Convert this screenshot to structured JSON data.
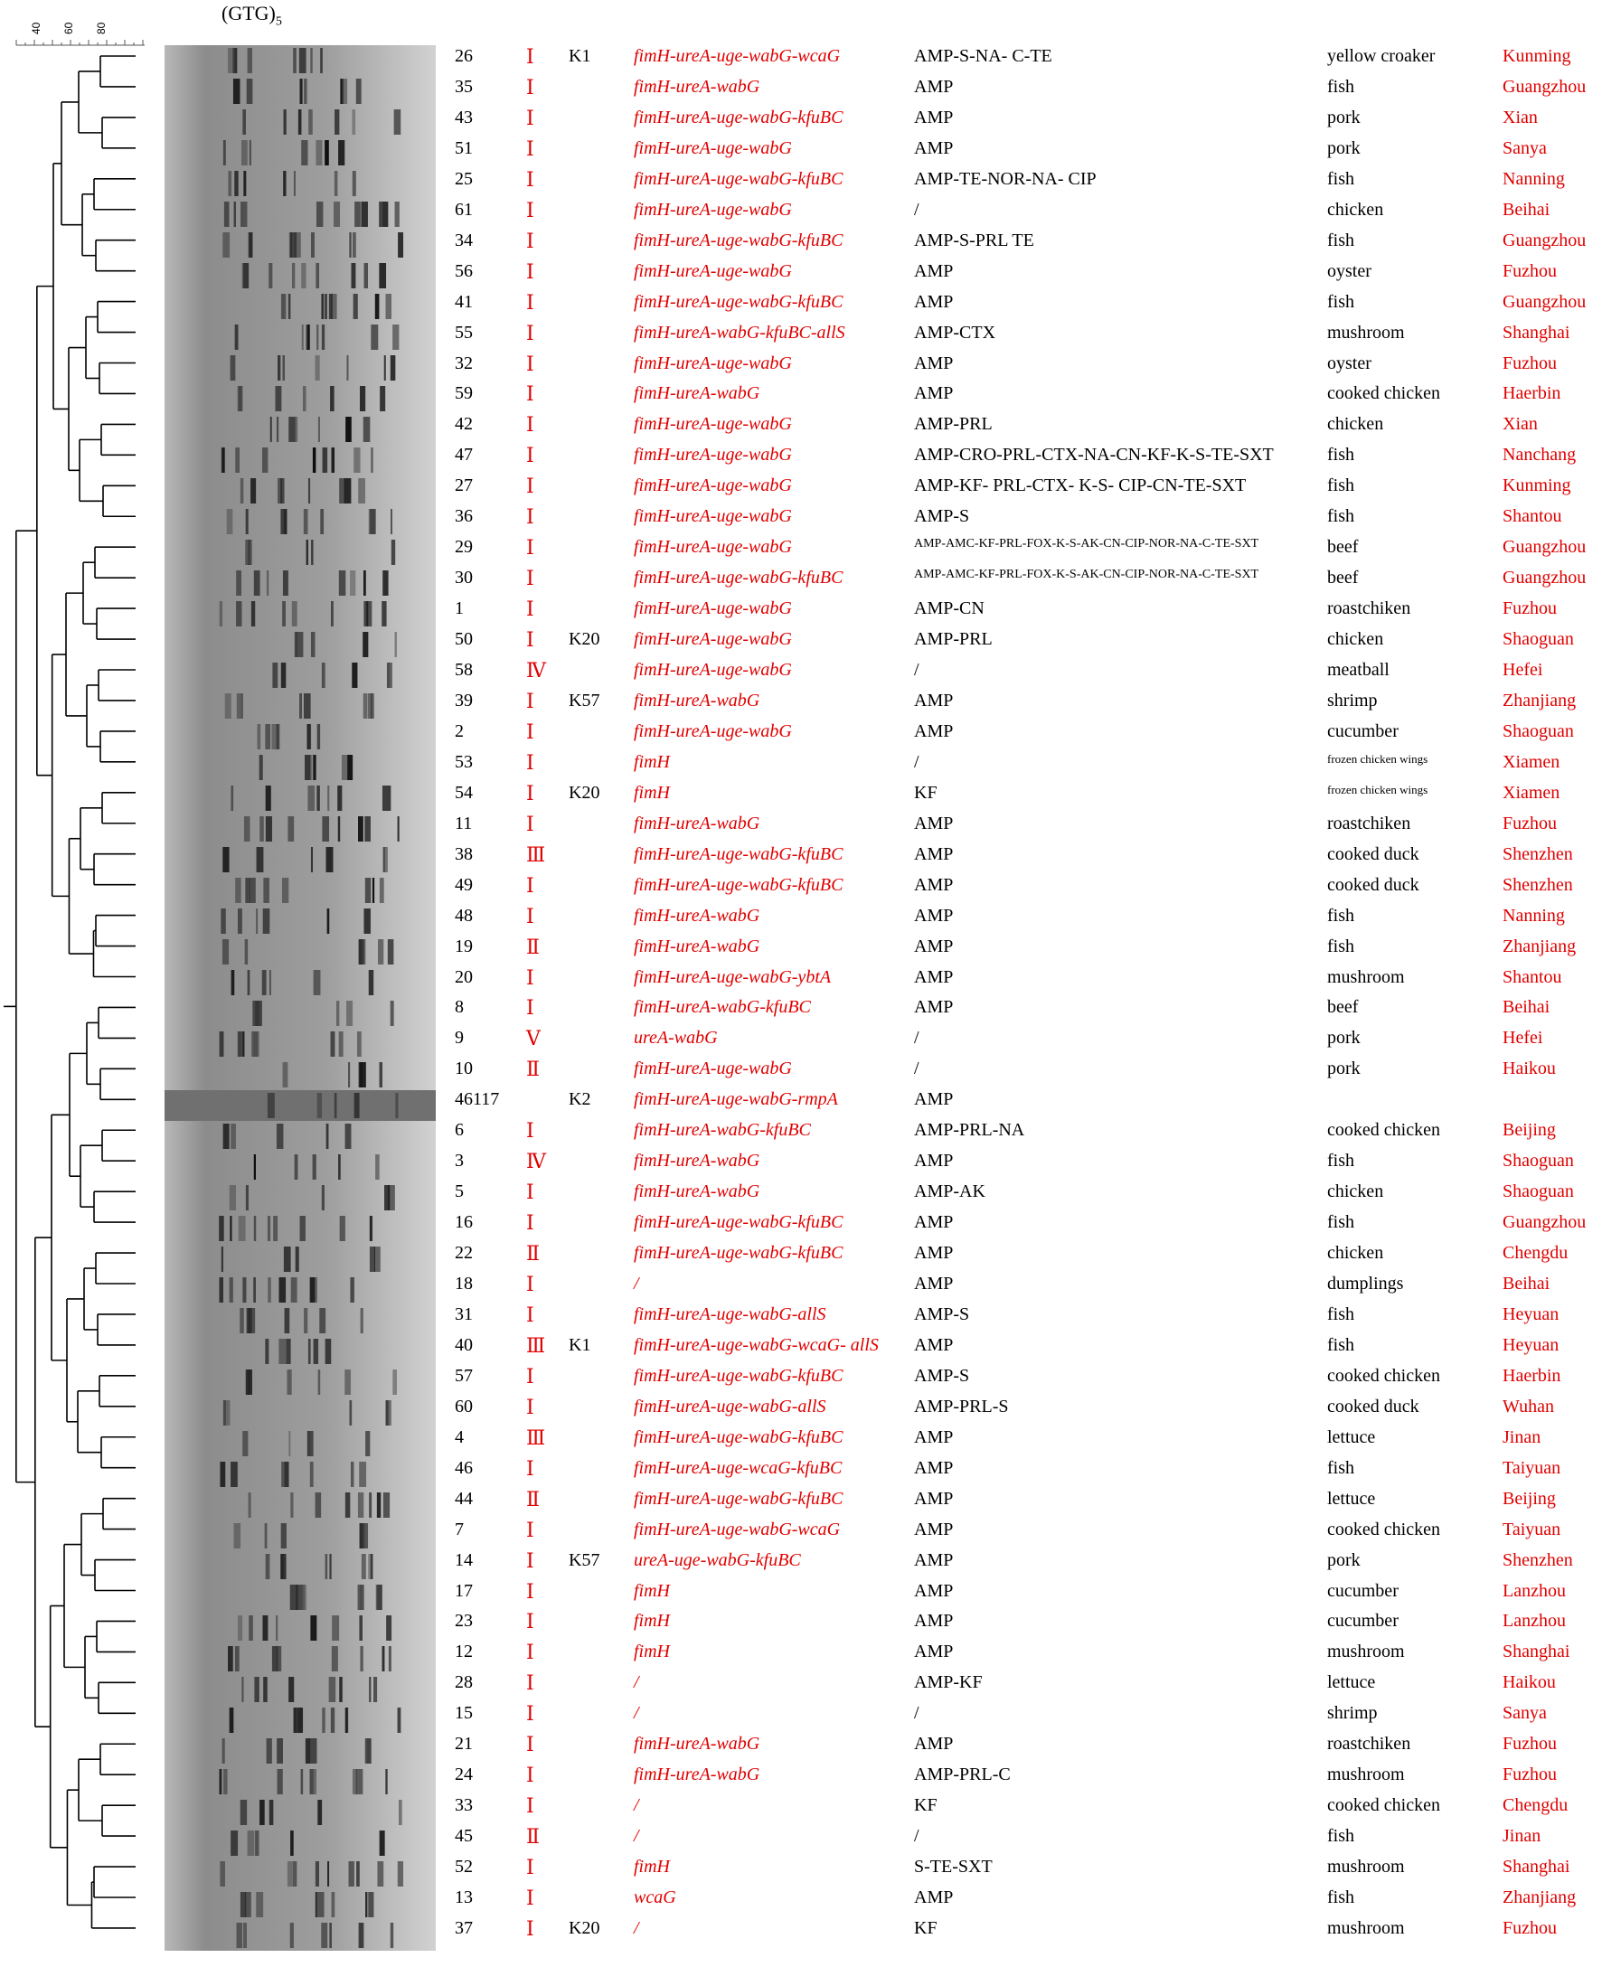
{
  "figure": {
    "gel_title_main": "(GTG)",
    "gel_title_sub": "5",
    "scale_labels": [
      "40",
      "60",
      "80"
    ]
  },
  "rows": [
    {
      "id": "26",
      "cluster": "Ⅰ",
      "ktype": "K1",
      "virulence": "fimH-ureA-uge-wabG-wcaG",
      "resistance": "AMP-S-NA- C-TE",
      "source": "yellow croaker",
      "city": "Kunming"
    },
    {
      "id": "35",
      "cluster": "Ⅰ",
      "ktype": "",
      "virulence": "fimH-ureA-wabG",
      "resistance": "AMP",
      "source": "fish",
      "city": "Guangzhou"
    },
    {
      "id": "43",
      "cluster": "Ⅰ",
      "ktype": "",
      "virulence": "fimH-ureA-uge-wabG-kfuBC",
      "resistance": "AMP",
      "source": "pork",
      "city": "Xian"
    },
    {
      "id": "51",
      "cluster": "Ⅰ",
      "ktype": "",
      "virulence": "fimH-ureA-uge-wabG",
      "resistance": "AMP",
      "source": "pork",
      "city": "Sanya"
    },
    {
      "id": "25",
      "cluster": "Ⅰ",
      "ktype": "",
      "virulence": "fimH-ureA-uge-wabG-kfuBC",
      "resistance": "AMP-TE-NOR-NA- CIP",
      "source": "fish",
      "city": "Nanning"
    },
    {
      "id": "61",
      "cluster": "Ⅰ",
      "ktype": "",
      "virulence": "fimH-ureA-uge-wabG",
      "resistance": "/",
      "source": "chicken",
      "city": "Beihai"
    },
    {
      "id": "34",
      "cluster": "Ⅰ",
      "ktype": "",
      "virulence": "fimH-ureA-uge-wabG-kfuBC",
      "resistance": "AMP-S-PRL TE",
      "source": "fish",
      "city": "Guangzhou"
    },
    {
      "id": "56",
      "cluster": "Ⅰ",
      "ktype": "",
      "virulence": "fimH-ureA-uge-wabG",
      "resistance": "AMP",
      "source": "oyster",
      "city": "Fuzhou"
    },
    {
      "id": "41",
      "cluster": "Ⅰ",
      "ktype": "",
      "virulence": "fimH-ureA-uge-wabG-kfuBC",
      "resistance": "AMP",
      "source": "fish",
      "city": "Guangzhou"
    },
    {
      "id": "55",
      "cluster": "Ⅰ",
      "ktype": "",
      "virulence": "fimH-ureA-wabG-kfuBC-allS",
      "resistance": "AMP-CTX",
      "source": "mushroom",
      "city": "Shanghai"
    },
    {
      "id": "32",
      "cluster": "Ⅰ",
      "ktype": "",
      "virulence": "fimH-ureA-uge-wabG",
      "resistance": "AMP",
      "source": "oyster",
      "city": "Fuzhou"
    },
    {
      "id": "59",
      "cluster": "Ⅰ",
      "ktype": "",
      "virulence": "fimH-ureA-wabG",
      "resistance": "AMP",
      "source": "cooked chicken",
      "city": "Haerbin"
    },
    {
      "id": "42",
      "cluster": "Ⅰ",
      "ktype": "",
      "virulence": "fimH-ureA-uge-wabG",
      "resistance": "AMP-PRL",
      "source": "chicken",
      "city": "Xian"
    },
    {
      "id": "47",
      "cluster": "Ⅰ",
      "ktype": "",
      "virulence": "fimH-ureA-uge-wabG",
      "resistance": "AMP-CRO-PRL-CTX-NA-CN-KF-K-S-TE-SXT",
      "source": "fish",
      "city": "Nanchang"
    },
    {
      "id": "27",
      "cluster": "Ⅰ",
      "ktype": "",
      "virulence": "fimH-ureA-uge-wabG",
      "resistance": "AMP-KF- PRL-CTX- K-S- CIP-CN-TE-SXT",
      "source": "fish",
      "city": "Kunming"
    },
    {
      "id": "36",
      "cluster": "Ⅰ",
      "ktype": "",
      "virulence": "fimH-ureA-uge-wabG",
      "resistance": "AMP-S",
      "source": "fish",
      "city": "Shantou"
    },
    {
      "id": "29",
      "cluster": "Ⅰ",
      "ktype": "",
      "virulence": "fimH-ureA-uge-wabG",
      "resistance": "AMP-AMC-KF-PRL-FOX-K-S-AK-CN-CIP-NOR-NA-C-TE-SXT",
      "source": "beef",
      "city": "Guangzhou"
    },
    {
      "id": "30",
      "cluster": "Ⅰ",
      "ktype": "",
      "virulence": "fimH-ureA-uge-wabG-kfuBC",
      "resistance": "AMP-AMC-KF-PRL-FOX-K-S-AK-CN-CIP-NOR-NA-C-TE-SXT",
      "source": "beef",
      "city": "Guangzhou"
    },
    {
      "id": "1",
      "cluster": "Ⅰ",
      "ktype": "",
      "virulence": "fimH-ureA-uge-wabG",
      "resistance": "AMP-CN",
      "source": "roastchiken",
      "city": "Fuzhou"
    },
    {
      "id": "50",
      "cluster": "Ⅰ",
      "ktype": "K20",
      "virulence": "fimH-ureA-uge-wabG",
      "resistance": "AMP-PRL",
      "source": "chicken",
      "city": "Shaoguan"
    },
    {
      "id": "58",
      "cluster": "Ⅳ",
      "ktype": "",
      "virulence": "fimH-ureA-uge-wabG",
      "resistance": "/",
      "source": "meatball",
      "city": "Hefei"
    },
    {
      "id": "39",
      "cluster": "Ⅰ",
      "ktype": "K57",
      "virulence": "fimH-ureA-wabG",
      "resistance": "AMP",
      "source": "shrimp",
      "city": "Zhanjiang"
    },
    {
      "id": "2",
      "cluster": "Ⅰ",
      "ktype": "",
      "virulence": "fimH-ureA-uge-wabG",
      "resistance": "AMP",
      "source": "cucumber",
      "city": "Shaoguan"
    },
    {
      "id": "53",
      "cluster": "Ⅰ",
      "ktype": "",
      "virulence": "fimH",
      "resistance": "/",
      "source": "frozen chicken wings",
      "city": "Xiamen"
    },
    {
      "id": "54",
      "cluster": "Ⅰ",
      "ktype": "K20",
      "virulence": "fimH",
      "resistance": "KF",
      "source": "frozen chicken wings",
      "city": "Xiamen"
    },
    {
      "id": "11",
      "cluster": "Ⅰ",
      "ktype": "",
      "virulence": "fimH-ureA-wabG",
      "resistance": "AMP",
      "source": "roastchiken",
      "city": "Fuzhou"
    },
    {
      "id": "38",
      "cluster": "Ⅲ",
      "ktype": "",
      "virulence": "fimH-ureA-uge-wabG-kfuBC",
      "resistance": "AMP",
      "source": "cooked duck",
      "city": "Shenzhen"
    },
    {
      "id": "49",
      "cluster": "Ⅰ",
      "ktype": "",
      "virulence": "fimH-ureA-uge-wabG-kfuBC",
      "resistance": "AMP",
      "source": "cooked duck",
      "city": "Shenzhen"
    },
    {
      "id": "48",
      "cluster": "Ⅰ",
      "ktype": "",
      "virulence": "fimH-ureA-wabG",
      "resistance": "AMP",
      "source": "fish",
      "city": "Nanning"
    },
    {
      "id": "19",
      "cluster": "Ⅱ",
      "ktype": "",
      "virulence": "fimH-ureA-wabG",
      "resistance": "AMP",
      "source": "fish",
      "city": "Zhanjiang"
    },
    {
      "id": "20",
      "cluster": "Ⅰ",
      "ktype": "",
      "virulence": "fimH-ureA-uge-wabG-ybtA",
      "resistance": "AMP",
      "source": "mushroom",
      "city": "Shantou"
    },
    {
      "id": "8",
      "cluster": "Ⅰ",
      "ktype": "",
      "virulence": "fimH-ureA-wabG-kfuBC",
      "resistance": "AMP",
      "source": "beef",
      "city": "Beihai"
    },
    {
      "id": "9",
      "cluster": "Ⅴ",
      "ktype": "",
      "virulence": "ureA-wabG",
      "resistance": "/",
      "source": "pork",
      "city": "Hefei"
    },
    {
      "id": "10",
      "cluster": "Ⅱ",
      "ktype": "",
      "virulence": "fimH-ureA-uge-wabG",
      "resistance": "/",
      "source": "pork",
      "city": "Haikou"
    },
    {
      "id": "46117",
      "cluster": "",
      "ktype": "K2",
      "virulence": "fimH-ureA-uge-wabG-rmpA",
      "resistance": "AMP",
      "source": "",
      "city": ""
    },
    {
      "id": "6",
      "cluster": "Ⅰ",
      "ktype": "",
      "virulence": "fimH-ureA-wabG-kfuBC",
      "resistance": "AMP-PRL-NA",
      "source": "cooked chicken",
      "city": "Beijing"
    },
    {
      "id": "3",
      "cluster": "Ⅳ",
      "ktype": "",
      "virulence": "fimH-ureA-wabG",
      "resistance": "AMP",
      "source": "fish",
      "city": "Shaoguan"
    },
    {
      "id": "5",
      "cluster": "Ⅰ",
      "ktype": "",
      "virulence": "fimH-ureA-wabG",
      "resistance": "AMP-AK",
      "source": "chicken",
      "city": "Shaoguan"
    },
    {
      "id": "16",
      "cluster": "Ⅰ",
      "ktype": "",
      "virulence": "fimH-ureA-uge-wabG-kfuBC",
      "resistance": "AMP",
      "source": "fish",
      "city": "Guangzhou"
    },
    {
      "id": "22",
      "cluster": "Ⅱ",
      "ktype": "",
      "virulence": "fimH-ureA-uge-wabG-kfuBC",
      "resistance": "AMP",
      "source": "chicken",
      "city": "Chengdu"
    },
    {
      "id": "18",
      "cluster": "Ⅰ",
      "ktype": "",
      "virulence": "/",
      "resistance": "AMP",
      "source": "dumplings",
      "city": "Beihai"
    },
    {
      "id": "31",
      "cluster": "Ⅰ",
      "ktype": "",
      "virulence": "fimH-ureA-uge-wabG-allS",
      "resistance": "AMP-S",
      "source": "fish",
      "city": "Heyuan"
    },
    {
      "id": "40",
      "cluster": "Ⅲ",
      "ktype": "K1",
      "virulence": "fimH-ureA-uge-wabG-wcaG- allS",
      "resistance": "AMP",
      "source": "fish",
      "city": "Heyuan"
    },
    {
      "id": "57",
      "cluster": "Ⅰ",
      "ktype": "",
      "virulence": "fimH-ureA-uge-wabG-kfuBC",
      "resistance": "AMP-S",
      "source": "cooked chicken",
      "city": "Haerbin"
    },
    {
      "id": "60",
      "cluster": "Ⅰ",
      "ktype": "",
      "virulence": "fimH-ureA-uge-wabG-allS",
      "resistance": "AMP-PRL-S",
      "source": "cooked duck",
      "city": "Wuhan"
    },
    {
      "id": "4",
      "cluster": "Ⅲ",
      "ktype": "",
      "virulence": "fimH-ureA-uge-wabG-kfuBC",
      "resistance": "AMP",
      "source": "lettuce",
      "city": "Jinan"
    },
    {
      "id": "46",
      "cluster": "Ⅰ",
      "ktype": "",
      "virulence": "fimH-ureA-uge-wcaG-kfuBC",
      "resistance": "AMP",
      "source": "fish",
      "city": "Taiyuan"
    },
    {
      "id": "44",
      "cluster": "Ⅱ",
      "ktype": "",
      "virulence": "fimH-ureA-uge-wabG-kfuBC",
      "resistance": "AMP",
      "source": "lettuce",
      "city": "Beijing"
    },
    {
      "id": "7",
      "cluster": "Ⅰ",
      "ktype": "",
      "virulence": "fimH-ureA-uge-wabG-wcaG",
      "resistance": "AMP",
      "source": "cooked chicken",
      "city": "Taiyuan"
    },
    {
      "id": "14",
      "cluster": "Ⅰ",
      "ktype": "K57",
      "virulence": "ureA-uge-wabG-kfuBC",
      "resistance": "AMP",
      "source": "pork",
      "city": "Shenzhen"
    },
    {
      "id": "17",
      "cluster": "Ⅰ",
      "ktype": "",
      "virulence": "fimH",
      "resistance": "AMP",
      "source": "cucumber",
      "city": "Lanzhou"
    },
    {
      "id": "23",
      "cluster": "Ⅰ",
      "ktype": "",
      "virulence": "fimH",
      "resistance": "AMP",
      "source": "cucumber",
      "city": "Lanzhou"
    },
    {
      "id": "12",
      "cluster": "Ⅰ",
      "ktype": "",
      "virulence": "fimH",
      "resistance": "AMP",
      "source": "mushroom",
      "city": "Shanghai"
    },
    {
      "id": "28",
      "cluster": "Ⅰ",
      "ktype": "",
      "virulence": "/",
      "resistance": "AMP-KF",
      "source": "lettuce",
      "city": "Haikou"
    },
    {
      "id": "15",
      "cluster": "Ⅰ",
      "ktype": "",
      "virulence": "/",
      "resistance": "/",
      "source": "shrimp",
      "city": "Sanya"
    },
    {
      "id": "21",
      "cluster": "Ⅰ",
      "ktype": "",
      "virulence": "fimH-ureA-wabG",
      "resistance": "AMP",
      "source": "roastchiken",
      "city": "Fuzhou"
    },
    {
      "id": "24",
      "cluster": "Ⅰ",
      "ktype": "",
      "virulence": "fimH-ureA-wabG",
      "resistance": "AMP-PRL-C",
      "source": "mushroom",
      "city": "Fuzhou"
    },
    {
      "id": "33",
      "cluster": "Ⅰ",
      "ktype": "",
      "virulence": "/",
      "resistance": "KF",
      "source": "cooked chicken",
      "city": "Chengdu"
    },
    {
      "id": "45",
      "cluster": "Ⅱ",
      "ktype": "",
      "virulence": "/",
      "resistance": "/",
      "source": "fish",
      "city": "Jinan"
    },
    {
      "id": "52",
      "cluster": "Ⅰ",
      "ktype": "",
      "virulence": "fimH",
      "resistance": "S-TE-SXT",
      "source": "mushroom",
      "city": "Shanghai"
    },
    {
      "id": "13",
      "cluster": "Ⅰ",
      "ktype": "",
      "virulence": "wcaG",
      "resistance": "AMP",
      "source": "fish",
      "city": "Zhanjiang"
    },
    {
      "id": "37",
      "cluster": "Ⅰ",
      "ktype": "K20",
      "virulence": "/",
      "resistance": "KF",
      "source": "mushroom",
      "city": "Fuzhou"
    }
  ]
}
